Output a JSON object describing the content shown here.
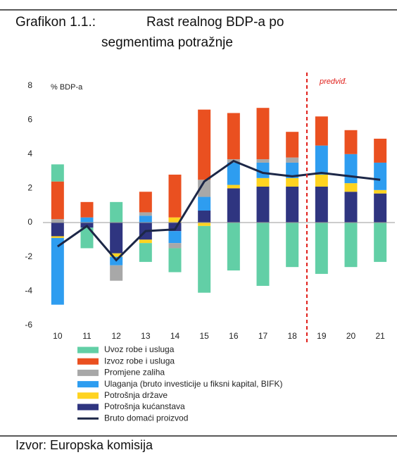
{
  "chart_data": {
    "type": "bar",
    "title": "Grafikon 1.1.:",
    "subtitle": "Rast realnog BDP-a po segmentima potražnje",
    "ylabel": "% BDP-a",
    "source": "Izvor: Europska komisija",
    "annotation": {
      "text": "predviđ.",
      "before": "19",
      "color": "#e0201b"
    },
    "categories": [
      "10",
      "11",
      "12",
      "13",
      "14",
      "15",
      "16",
      "17",
      "18",
      "19",
      "20",
      "21"
    ],
    "ylim": [
      -6,
      8
    ],
    "yticks": [
      -6,
      -4,
      -2,
      0,
      2,
      4,
      6,
      8
    ],
    "stacked": true,
    "series": [
      {
        "name": "Uvoz robe i usluga",
        "color": "#62cfa6",
        "values": [
          1.0,
          -1.2,
          1.2,
          -1.1,
          -1.4,
          -3.9,
          -2.8,
          -3.7,
          -2.6,
          -3.0,
          -2.6,
          -2.3
        ]
      },
      {
        "name": "Izvoz robe i usluga",
        "color": "#ea5020",
        "values": [
          2.2,
          0.9,
          0,
          1.2,
          2.5,
          4.1,
          2.7,
          3.0,
          1.5,
          1.7,
          1.4,
          1.4
        ]
      },
      {
        "name": "Promjene zaliha",
        "color": "#a8a8a8",
        "values": [
          0.2,
          0,
          -0.9,
          0.2,
          -0.3,
          1.0,
          0.2,
          0.2,
          0.3,
          0,
          0,
          0
        ]
      },
      {
        "name": "Ulaganja (bruto investicije u fiksni kapital, BIFK)",
        "color": "#2e9df0",
        "values": [
          -3.9,
          0.3,
          -0.5,
          0.4,
          -0.7,
          0.8,
          1.3,
          0.9,
          0.9,
          1.7,
          1.7,
          1.6
        ]
      },
      {
        "name": "Potrošnja države",
        "color": "#ffd320",
        "values": [
          -0.1,
          0,
          -0.2,
          -0.2,
          0.3,
          -0.2,
          0.2,
          0.5,
          0.5,
          0.7,
          0.5,
          0.2
        ]
      },
      {
        "name": "Potrošnja kućanstava",
        "color": "#2f3580",
        "values": [
          -0.8,
          -0.3,
          -1.8,
          -1.0,
          -0.5,
          0.7,
          2.0,
          2.1,
          2.1,
          2.1,
          1.8,
          1.7
        ]
      },
      {
        "name": "Bruto domaći proizvod",
        "color": "#1c2747",
        "type": "line",
        "values": [
          -1.4,
          -0.2,
          -2.2,
          -0.5,
          -0.4,
          2.4,
          3.6,
          2.9,
          2.7,
          2.9,
          2.7,
          2.5
        ]
      }
    ]
  }
}
